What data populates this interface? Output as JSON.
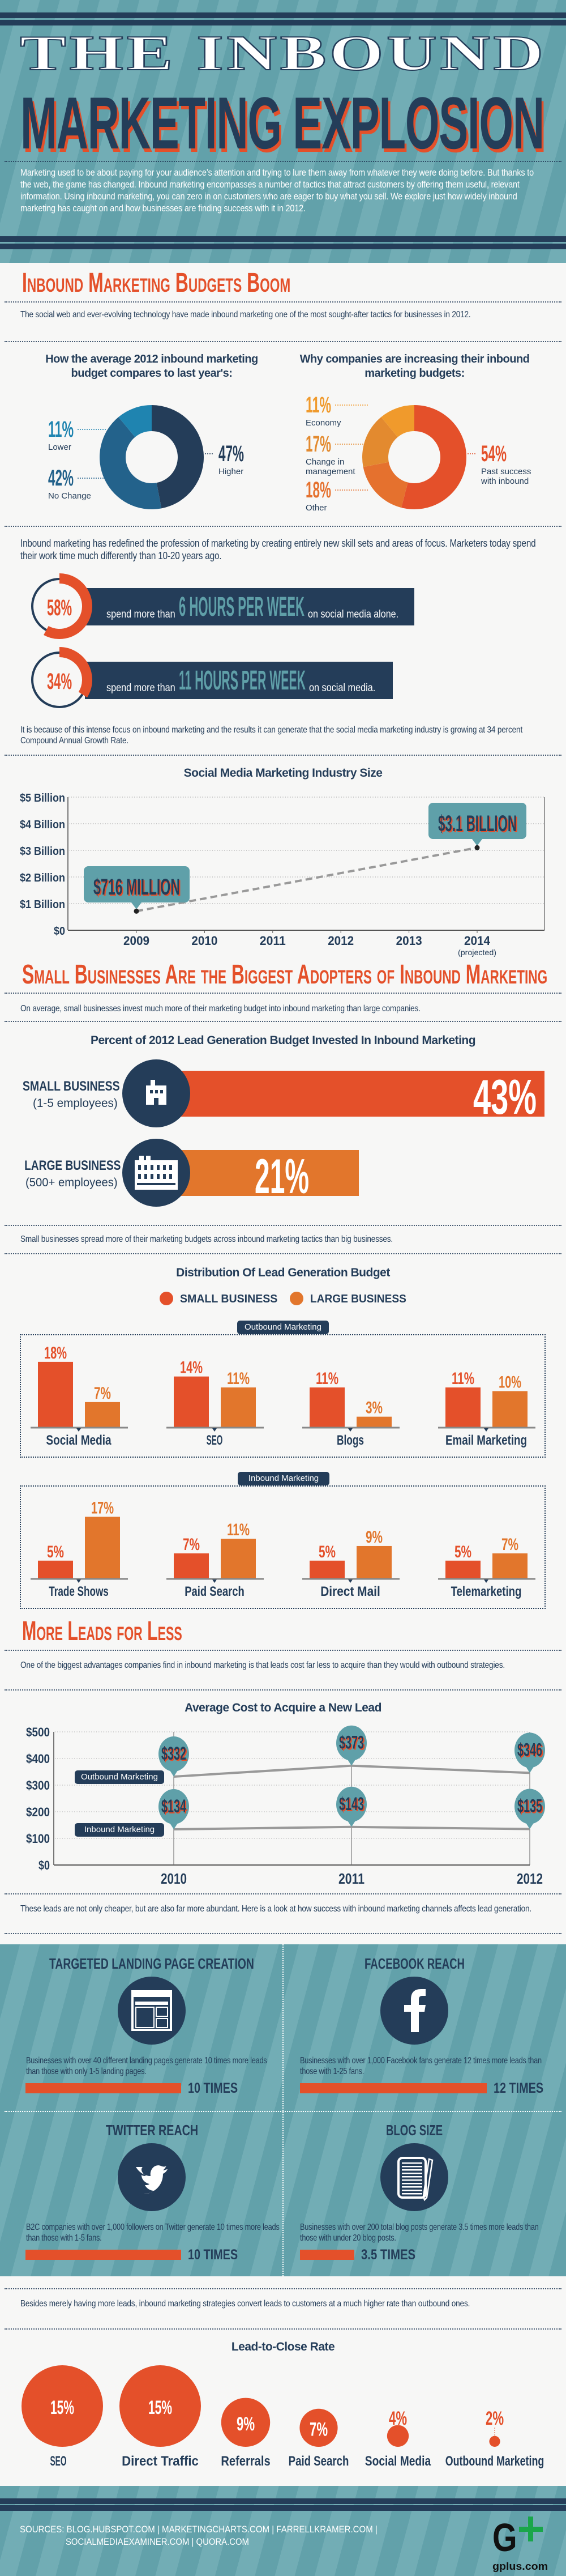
{
  "colors": {
    "navy": "#243d59",
    "teal": "#5f9fa8",
    "red_orange": "#e4502a",
    "orange": "#e2762c",
    "light_orange": "#f09a2c",
    "blue_mid": "#23628b",
    "blue_light": "#1f84b0"
  },
  "header": {
    "title_line1": "THE INBOUND",
    "title_line2": "MARKETING EXPLOSION",
    "intro": "Marketing used to be about paying for your audience’s attention and trying to lure them away from whatever they were doing before. But thanks to the web, the game has changed. Inbound marketing encompasses a number of tactics that attract customers by offering them useful, relevant information. Using inbound marketing, you can zero in on customers who are eager to buy what you sell. We explore just how widely inbound marketing has caught on and how businesses are finding success with it in 2012."
  },
  "budgets": {
    "heading": "Inbound Marketing Budgets Boom",
    "intro": "The social web and ever-evolving technology have made inbound marketing one of the most sought-after tactics for businesses in 2012.",
    "donut_compare": {
      "title": "How the average 2012 inbound marketing budget compares to last year's:",
      "segments": [
        {
          "label": "Higher",
          "value": 47,
          "text": "47%",
          "color": "#243d59"
        },
        {
          "label": "No Change",
          "value": 42,
          "text": "42%",
          "color": "#23628b"
        },
        {
          "label": "Lower",
          "value": 11,
          "text": "11%",
          "color": "#1f84b0"
        }
      ]
    },
    "donut_reasons": {
      "title": "Why companies are increasing their inbound marketing budgets:",
      "segments": [
        {
          "label": "Past success with inbound",
          "value": 54,
          "text": "54%",
          "color": "#e4502a"
        },
        {
          "label": "Other",
          "value": 18,
          "text": "18%",
          "color": "#e5712e"
        },
        {
          "label": "Change in management",
          "value": 17,
          "text": "17%",
          "color": "#e38a2f"
        },
        {
          "label": "Economy",
          "value": 11,
          "text": "11%",
          "color": "#f09a2c"
        }
      ]
    },
    "para_profession": "Inbound marketing has redefined the profession of marketing by creating entirely new skill sets and areas of focus. Marketers today spend their work time much differently than 10-20 years ago.",
    "stats": [
      {
        "pct_text": "58%",
        "value": 58,
        "pre": "spend more than",
        "big": "6 HOURS PER WEEK",
        "post": "on social media alone."
      },
      {
        "pct_text": "34%",
        "value": 34,
        "pre": "spend more than",
        "big": "11 HOURS PER WEEK",
        "post": "on social media."
      }
    ],
    "para_growth": "It is because of this intense focus on inbound marketing and the results it can generate that the social media marketing industry is growing at 34 percent Compound Annual Growth Rate."
  },
  "industry_chart": {
    "type": "line",
    "title": "Social Media Marketing Industry Size",
    "y_ticks": [
      "$0",
      "$1 Billion",
      "$2 Billion",
      "$3 Billion",
      "$4 Billion",
      "$5 Billion"
    ],
    "ylim": [
      0,
      5
    ],
    "y_unit": "billion USD",
    "x_ticks": [
      "2009",
      "2010",
      "2011",
      "2012",
      "2013",
      "2014"
    ],
    "x_note": "(projected)",
    "grid": true,
    "points": [
      {
        "x": 2009,
        "y": 0.716,
        "label": "$716 MILLION"
      },
      {
        "x": 2014,
        "y": 3.1,
        "label": "$3.1 BILLION"
      }
    ]
  },
  "small_biz": {
    "heading": "Small Businesses Are the Biggest Adopters of Inbound Marketing",
    "intro": "On average, small businesses invest much more of their marketing budget into inbound marketing than large companies.",
    "bar_title": "Percent of 2012 Lead Generation Budget Invested In Inbound Marketing",
    "rows": [
      {
        "label": "SMALL BUSINESS",
        "sub": "(1-5 employees)",
        "value": 43,
        "text": "43%",
        "color": "#e4502a",
        "icon": "small-building-icon"
      },
      {
        "label": "LARGE BUSINESS",
        "sub": "(500+ employees)",
        "value": 21,
        "text": "21%",
        "color": "#e2762c",
        "icon": "large-building-icon"
      }
    ],
    "para_spread": "Small businesses spread more of their marketing budgets across inbound marketing tactics than big businesses.",
    "dist_title": "Distribution Of Lead Generation Budget",
    "legend": [
      "SMALL BUSINESS",
      "LARGE BUSINESS"
    ]
  },
  "chart_data": [
    {
      "type": "bar",
      "title": "Distribution Of Lead Generation Budget",
      "group_label": "Outbound Marketing",
      "categories": [
        "Social Media",
        "SEO",
        "Blogs",
        "Email Marketing"
      ],
      "series": [
        {
          "name": "SMALL BUSINESS",
          "values": [
            18,
            14,
            11,
            11
          ],
          "labels": [
            "18%",
            "14%",
            "11%",
            "11%"
          ]
        },
        {
          "name": "LARGE BUSINESS",
          "values": [
            7,
            11,
            3,
            10
          ],
          "labels": [
            "7%",
            "11%",
            "3%",
            "10%"
          ]
        }
      ]
    },
    {
      "type": "bar",
      "group_label": "Inbound Marketing",
      "categories": [
        "Trade Shows",
        "Paid Search",
        "Direct Mail",
        "Telemarketing"
      ],
      "series": [
        {
          "name": "SMALL BUSINESS",
          "values": [
            5,
            7,
            5,
            5
          ],
          "labels": [
            "5%",
            "7%",
            "5%",
            "5%"
          ]
        },
        {
          "name": "LARGE BUSINESS",
          "values": [
            17,
            11,
            9,
            7
          ],
          "labels": [
            "17%",
            "11%",
            "9%",
            "7%"
          ]
        }
      ]
    },
    {
      "type": "line",
      "title": "Average Cost to Acquire a New Lead",
      "x": [
        "2010",
        "2011",
        "2012"
      ],
      "y_ticks": [
        "$0",
        "$100",
        "$200",
        "$300",
        "$400",
        "$500"
      ],
      "ylim": [
        0,
        500
      ],
      "grid": true,
      "series": [
        {
          "name": "Outbound Marketing",
          "values": [
            332,
            373,
            346
          ],
          "labels": [
            "$332",
            "$373",
            "$346"
          ]
        },
        {
          "name": "Inbound Marketing",
          "values": [
            134,
            143,
            135
          ],
          "labels": [
            "$134",
            "$143",
            "$135"
          ]
        }
      ]
    },
    {
      "type": "bubble",
      "title": "Lead-to-Close Rate",
      "categories": [
        "SEO",
        "Direct Traffic",
        "Referrals",
        "Paid Search",
        "Social Media",
        "Outbound Marketing"
      ],
      "values": [
        15,
        15,
        9,
        7,
        4,
        2
      ],
      "labels": [
        "15%",
        "15%",
        "9%",
        "7%",
        "4%",
        "2%"
      ]
    }
  ],
  "leads": {
    "heading": "More Leads for Less",
    "intro": "One of the biggest advantages companies find in inbound marketing is that leads cost far less to acquire than they would with outbound strategies.",
    "para_abundant": "These leads are not only cheaper, but are also far more abundant. Here is a look at how success with inbound marketing channels affects lead generation.",
    "panels": [
      {
        "title": "TARGETED LANDING PAGE CREATION",
        "text": "Businesses with over 40 different landing pages generate 10 times more leads than those with only 1-5 landing pages.",
        "value": 10,
        "times": "10 TIMES",
        "icon": "landing-page-icon"
      },
      {
        "title": "FACEBOOK REACH",
        "text": "Businesses with over 1,000 Facebook fans generate 12 times more leads than those with 1-25 fans.",
        "value": 12,
        "times": "12 TIMES",
        "icon": "facebook-icon"
      },
      {
        "title": "TWITTER REACH",
        "text": "B2C companies with over 1,000 followers on Twitter generate 10 times more leads than those with 1-5 fans.",
        "value": 10,
        "times": "10 TIMES",
        "icon": "twitter-icon"
      },
      {
        "title": "BLOG SIZE",
        "text": "Businesses with over 200 total blog posts generate 3.5 times more leads than those with under 20 blog posts.",
        "value": 3.5,
        "times": "3.5 TIMES",
        "icon": "blog-icon"
      }
    ],
    "para_convert": "Besides merely having more leads, inbound marketing strategies convert leads to customers at a much higher rate than outbound ones.",
    "close_title": "Lead-to-Close Rate"
  },
  "footer": {
    "sources": "SOURCES: BLOG.HUBSPOT.COM | MARKETINGCHARTS.COM | FARRELLKRAMER.COM |",
    "sources2": "SOCIALMEDIAEXAMINER.COM | QUORA.COM",
    "logo": "G+",
    "logo_site": "gplus.com"
  }
}
